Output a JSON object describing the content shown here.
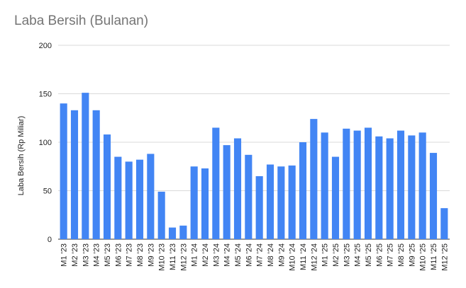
{
  "chart_data": {
    "type": "bar",
    "title": "Laba Bersih (Bulanan)",
    "xlabel": "",
    "ylabel": "Laba Bersih (Rp Miliar)",
    "ylim": [
      0,
      200
    ],
    "yticks": [
      0,
      50,
      100,
      150,
      200
    ],
    "grid": true,
    "legend": "none",
    "bar_color": "#4285f4",
    "categories": [
      "M1 '23",
      "M2 '23",
      "M3 '23",
      "M4 '23",
      "M5 '23",
      "M6 '23",
      "M7 '23",
      "M8 '23",
      "M9 '23",
      "M10 '23",
      "M11 '23",
      "M12 '23",
      "M1 '24",
      "M2 '24",
      "M3 '24",
      "M4 '24",
      "M5 '24",
      "M6 '24",
      "M7 '24",
      "M8 '24",
      "M9 '24",
      "M10 '24",
      "M11 '24",
      "M12 '24",
      "M1 '25",
      "M2 '25",
      "M3 '25",
      "M4 '25",
      "M5 '25",
      "M6 '25",
      "M7 '25",
      "M8 '25",
      "M9 '25",
      "M10 '25",
      "M11 '25",
      "M12 '25"
    ],
    "values": [
      140,
      133,
      151,
      133,
      108,
      85,
      80,
      82,
      88,
      49,
      12,
      14,
      75,
      73,
      115,
      97,
      104,
      87,
      65,
      77,
      75,
      76,
      100,
      124,
      110,
      85,
      114,
      112,
      115,
      106,
      104,
      112,
      107,
      110,
      89,
      32
    ]
  }
}
